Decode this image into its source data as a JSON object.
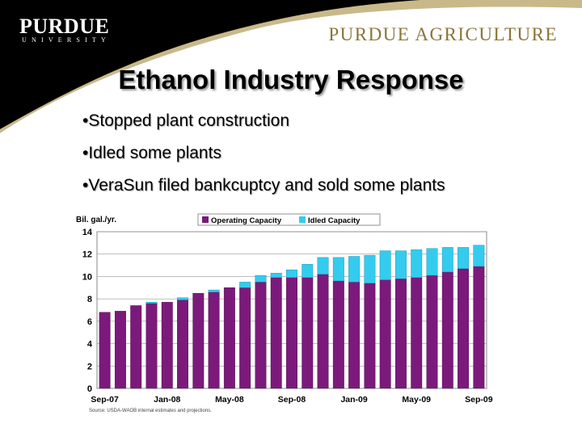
{
  "header": {
    "logo_main": "PURDUE",
    "logo_sub": "UNIVERSITY",
    "department": "PURDUE AGRICULTURE"
  },
  "slide": {
    "title": "Ethanol Industry Response",
    "bullets": [
      "•Stopped plant construction",
      "•Idled some plants",
      "•VeraSun filed bankcuptcy and sold some plants"
    ]
  },
  "colors": {
    "operating": "#7b1a7b",
    "idled": "#33ccee",
    "banner": "#000000",
    "banner_accent": "#c9b98a"
  },
  "chart_data": {
    "type": "bar",
    "stacked": true,
    "ylabel": "Bil. gal./yr.",
    "ylim": [
      0,
      14
    ],
    "yticks": [
      0,
      2,
      4,
      6,
      8,
      10,
      12,
      14
    ],
    "grid": true,
    "legend": "top-center",
    "categories": [
      "Sep-07",
      "Oct-07",
      "Nov-07",
      "Dec-07",
      "Jan-08",
      "Feb-08",
      "Mar-08",
      "Apr-08",
      "May-08",
      "Jun-08",
      "Jul-08",
      "Aug-08",
      "Sep-08",
      "Oct-08",
      "Nov-08",
      "Dec-08",
      "Jan-09",
      "Feb-09",
      "Mar-09",
      "Apr-09",
      "May-09",
      "Jun-09",
      "Jul-09",
      "Aug-09",
      "Sep-09"
    ],
    "x_tick_labels": [
      "Sep-07",
      "Jan-08",
      "May-08",
      "Sep-08",
      "Jan-09",
      "May-09",
      "Sep-09"
    ],
    "series": [
      {
        "name": "Operating Capacity",
        "values": [
          6.8,
          6.9,
          7.4,
          7.6,
          7.7,
          7.9,
          8.5,
          8.6,
          9.0,
          9.0,
          9.5,
          9.9,
          9.9,
          9.9,
          10.2,
          9.6,
          9.5,
          9.4,
          9.7,
          9.8,
          9.9,
          10.1,
          10.4,
          10.7,
          10.9
        ]
      },
      {
        "name": "Idled Capacity",
        "values": [
          0,
          0,
          0,
          0.1,
          0,
          0.2,
          0,
          0.2,
          0,
          0.5,
          0.6,
          0.4,
          0.7,
          1.2,
          1.5,
          2.1,
          2.3,
          2.5,
          2.6,
          2.5,
          2.5,
          2.4,
          2.2,
          1.9,
          1.9
        ]
      }
    ],
    "source": "Source:  USDA-WAOB internal estimates and projections."
  }
}
